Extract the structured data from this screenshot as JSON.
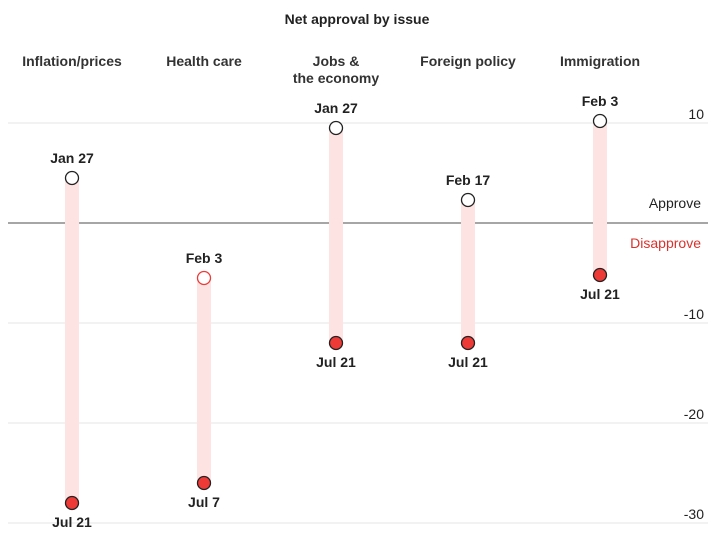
{
  "chart_data": {
    "type": "dot-range",
    "title": "Net approval by issue",
    "yticks": [
      {
        "value": 10,
        "label": "10"
      },
      {
        "value": -10,
        "label": "-10"
      },
      {
        "value": -20,
        "label": "-20"
      },
      {
        "value": -30,
        "label": "-30"
      }
    ],
    "ylim": [
      -30,
      10
    ],
    "zero_labels": {
      "above": "Approve",
      "below": "Disapprove"
    },
    "colors": {
      "range_band": "#fde3e2",
      "end_dot": "#ee3a36",
      "start_dot": "#ffffff",
      "disapprove_text": "#d9322c",
      "zero_line": "#888888",
      "grid": "#e6e6e6"
    },
    "categories": [
      {
        "name": [
          "Inflation/prices"
        ],
        "start": {
          "label": "Jan 27",
          "value": 4.5
        },
        "end": {
          "label": "Jul 21",
          "value": -28
        }
      },
      {
        "name": [
          "Health care"
        ],
        "start": {
          "label": "Feb 3",
          "value": -5.5
        },
        "end": {
          "label": "Jul 7",
          "value": -26
        }
      },
      {
        "name": [
          "Jobs &",
          "the economy"
        ],
        "start": {
          "label": "Jan 27",
          "value": 9.5
        },
        "end": {
          "label": "Jul 21",
          "value": -12
        }
      },
      {
        "name": [
          "Foreign policy"
        ],
        "start": {
          "label": "Feb 17",
          "value": 2.3
        },
        "end": {
          "label": "Jul 21",
          "value": -12
        }
      },
      {
        "name": [
          "Immigration"
        ],
        "start": {
          "label": "Feb 3",
          "value": 10.2
        },
        "end": {
          "label": "Jul 21",
          "value": -5.2
        }
      }
    ]
  }
}
